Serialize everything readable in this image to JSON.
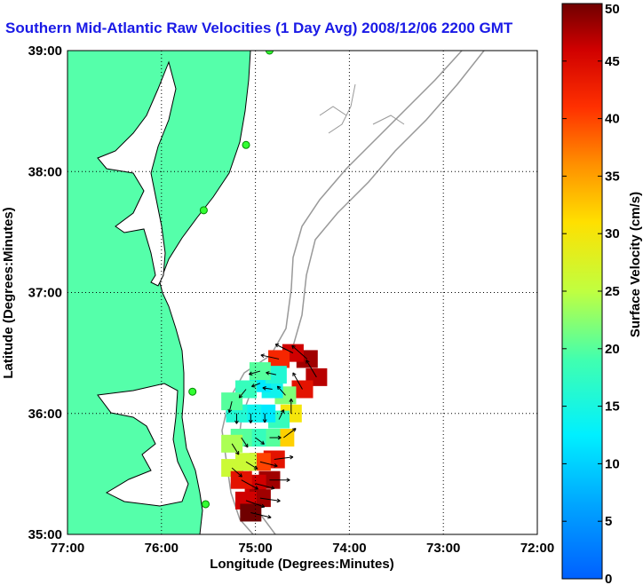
{
  "chart_data": {
    "type": "heatmap",
    "title": "Southern Mid-Atlantic Raw Velocities (1 Day Avg) 2008/12/06 2200 GMT",
    "xlabel": "Longitude (Degrees:Minutes)",
    "ylabel": "Latitude (Degrees:Minutes)",
    "xlim": [
      -77,
      -72
    ],
    "ylim": [
      35,
      39
    ],
    "x_ticks": [
      {
        "value": -77,
        "label": "77:00"
      },
      {
        "value": -76,
        "label": "76:00"
      },
      {
        "value": -75,
        "label": "75:00"
      },
      {
        "value": -74,
        "label": "74:00"
      },
      {
        "value": -73,
        "label": "73:00"
      },
      {
        "value": -72,
        "label": "72:00"
      }
    ],
    "y_ticks": [
      {
        "value": 35,
        "label": "35:00"
      },
      {
        "value": 36,
        "label": "36:00"
      },
      {
        "value": 37,
        "label": "37:00"
      },
      {
        "value": 38,
        "label": "38:00"
      },
      {
        "value": 39,
        "label": "39:00"
      }
    ],
    "grid": true,
    "colorbar": {
      "label": "Surface Velocity (cm/s)",
      "range": [
        0,
        50
      ],
      "ticks": [
        0,
        5,
        10,
        15,
        20,
        25,
        30,
        35,
        40,
        45,
        50
      ],
      "colormap": "jet"
    },
    "stations": [
      {
        "lon": -74.85,
        "lat": 39.0
      },
      {
        "lon": -75.1,
        "lat": 38.22
      },
      {
        "lon": -75.55,
        "lat": 37.68
      },
      {
        "lon": -75.67,
        "lat": 36.18
      },
      {
        "lon": -75.53,
        "lat": 35.25
      }
    ],
    "velocity_field": [
      {
        "lon": -74.45,
        "lat": 36.45,
        "speed": 48
      },
      {
        "lon": -74.6,
        "lat": 36.5,
        "speed": 46
      },
      {
        "lon": -74.75,
        "lat": 36.45,
        "speed": 42
      },
      {
        "lon": -74.35,
        "lat": 36.3,
        "speed": 47
      },
      {
        "lon": -74.5,
        "lat": 36.2,
        "speed": 44
      },
      {
        "lon": -74.68,
        "lat": 36.15,
        "speed": 22
      },
      {
        "lon": -74.82,
        "lat": 36.2,
        "speed": 14
      },
      {
        "lon": -74.95,
        "lat": 36.25,
        "speed": 12
      },
      {
        "lon": -74.78,
        "lat": 36.32,
        "speed": 16
      },
      {
        "lon": -74.95,
        "lat": 36.35,
        "speed": 20
      },
      {
        "lon": -75.1,
        "lat": 36.2,
        "speed": 18
      },
      {
        "lon": -74.62,
        "lat": 36.0,
        "speed": 30
      },
      {
        "lon": -74.75,
        "lat": 35.95,
        "speed": 18
      },
      {
        "lon": -74.9,
        "lat": 36.0,
        "speed": 12
      },
      {
        "lon": -75.05,
        "lat": 36.0,
        "speed": 14
      },
      {
        "lon": -75.2,
        "lat": 36.0,
        "speed": 16
      },
      {
        "lon": -75.25,
        "lat": 36.1,
        "speed": 20
      },
      {
        "lon": -74.7,
        "lat": 35.8,
        "speed": 32
      },
      {
        "lon": -74.85,
        "lat": 35.8,
        "speed": 20
      },
      {
        "lon": -75.0,
        "lat": 35.8,
        "speed": 18
      },
      {
        "lon": -75.15,
        "lat": 35.8,
        "speed": 20
      },
      {
        "lon": -75.25,
        "lat": 35.75,
        "speed": 24
      },
      {
        "lon": -74.8,
        "lat": 35.62,
        "speed": 44
      },
      {
        "lon": -74.95,
        "lat": 35.6,
        "speed": 40
      },
      {
        "lon": -75.1,
        "lat": 35.6,
        "speed": 26
      },
      {
        "lon": -75.25,
        "lat": 35.55,
        "speed": 26
      },
      {
        "lon": -74.85,
        "lat": 35.45,
        "speed": 48
      },
      {
        "lon": -75.0,
        "lat": 35.42,
        "speed": 46
      },
      {
        "lon": -75.15,
        "lat": 35.45,
        "speed": 44
      },
      {
        "lon": -74.95,
        "lat": 35.3,
        "speed": 48
      },
      {
        "lon": -75.1,
        "lat": 35.28,
        "speed": 46
      },
      {
        "lon": -75.05,
        "lat": 35.18,
        "speed": 50
      }
    ]
  }
}
